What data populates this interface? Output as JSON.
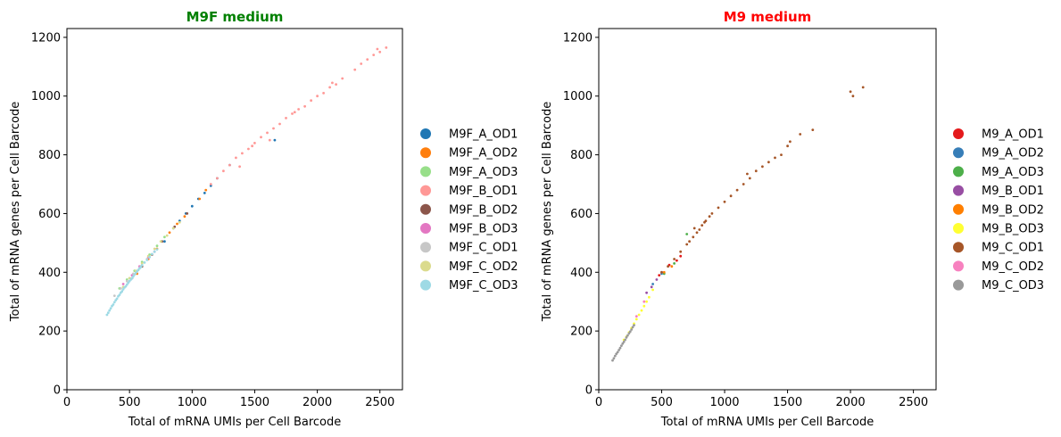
{
  "chart_data": [
    {
      "type": "scatter",
      "title": "M9F medium",
      "title_color": "#008000",
      "xlabel": "Total of mRNA UMIs per Cell Barcode",
      "ylabel": "Total of mRNA genes per Cell Barcode",
      "xlim": [
        0,
        2680
      ],
      "ylim": [
        0,
        1230
      ],
      "xticks": [
        0,
        500,
        1000,
        1500,
        2000,
        2500
      ],
      "yticks": [
        0,
        200,
        400,
        600,
        800,
        1000,
        1200
      ],
      "legend_position": "right-outside",
      "series": [
        {
          "name": "M9F_A_OD1",
          "color": "#1f77b4",
          "x": [
            780,
            850,
            900,
            950,
            1000,
            1050,
            1100,
            1150,
            1200,
            1300,
            1660
          ],
          "y": [
            505,
            550,
            575,
            600,
            625,
            650,
            670,
            695,
            720,
            765,
            850
          ]
        },
        {
          "name": "M9F_A_OD2",
          "color": "#ff7f0e",
          "x": [
            560,
            650,
            720,
            820,
            880,
            940,
            1060,
            1110
          ],
          "y": [
            395,
            445,
            480,
            535,
            565,
            590,
            650,
            680
          ]
        },
        {
          "name": "M9F_A_OD3",
          "color": "#98df8a",
          "x": [
            420,
            480,
            540,
            600,
            660,
            720,
            780
          ],
          "y": [
            345,
            375,
            405,
            435,
            460,
            490,
            520
          ]
        },
        {
          "name": "M9F_B_OD1",
          "color": "#ff9896",
          "x": [
            1150,
            1200,
            1250,
            1300,
            1350,
            1400,
            1450,
            1500,
            1550,
            1600,
            1650,
            1700,
            1750,
            1800,
            1850,
            1900,
            1950,
            2000,
            2050,
            2100,
            2150,
            2200,
            2300,
            2350,
            2400,
            2450,
            2480,
            2500,
            2550,
            1380,
            1480,
            1620,
            1820,
            2120
          ],
          "y": [
            700,
            720,
            745,
            765,
            790,
            805,
            820,
            840,
            860,
            875,
            890,
            905,
            925,
            940,
            955,
            965,
            985,
            1000,
            1010,
            1030,
            1040,
            1060,
            1090,
            1110,
            1125,
            1140,
            1160,
            1150,
            1165,
            760,
            830,
            850,
            945,
            1045
          ]
        },
        {
          "name": "M9F_B_OD2",
          "color": "#8c564b",
          "x": [
            520,
            600,
            680,
            760,
            860,
            960
          ],
          "y": [
            380,
            420,
            460,
            505,
            555,
            600
          ]
        },
        {
          "name": "M9F_B_OD3",
          "color": "#e377c2",
          "x": [
            450,
            520,
            580,
            650,
            700
          ],
          "y": [
            360,
            390,
            420,
            450,
            470
          ]
        },
        {
          "name": "M9F_C_OD1",
          "color": "#c7c7c7",
          "x": [
            380,
            430,
            480,
            530,
            590,
            640
          ],
          "y": [
            320,
            345,
            370,
            395,
            420,
            445
          ]
        },
        {
          "name": "M9F_C_OD2",
          "color": "#dbdb8d",
          "x": [
            450,
            500,
            550,
            600,
            650,
            700,
            750,
            800,
            850,
            900
          ],
          "y": [
            350,
            380,
            405,
            430,
            455,
            480,
            505,
            525,
            550,
            570
          ]
        },
        {
          "name": "M9F_C_OD3",
          "color": "#9edae5",
          "x": [
            320,
            330,
            340,
            350,
            360,
            370,
            380,
            390,
            400,
            410,
            420,
            430,
            440,
            450,
            460,
            470,
            480,
            490,
            500,
            510,
            520,
            530,
            540,
            550,
            560,
            570,
            580,
            590,
            600,
            620,
            640,
            660,
            680,
            700,
            720
          ],
          "y": [
            255,
            262,
            270,
            277,
            285,
            290,
            298,
            305,
            310,
            318,
            323,
            330,
            335,
            342,
            348,
            352,
            358,
            364,
            370,
            375,
            380,
            386,
            392,
            398,
            403,
            408,
            413,
            418,
            424,
            433,
            442,
            452,
            462,
            470,
            478
          ]
        }
      ]
    },
    {
      "type": "scatter",
      "title": "M9 medium",
      "title_color": "#ff0000",
      "xlabel": "Total of mRNA UMIs per Cell Barcode",
      "ylabel": "Total of mRNA genes per Cell Barcode",
      "xlim": [
        0,
        2680
      ],
      "ylim": [
        0,
        1230
      ],
      "xticks": [
        0,
        500,
        1000,
        1500,
        2000,
        2500
      ],
      "yticks": [
        0,
        200,
        400,
        600,
        800,
        1000,
        1200
      ],
      "legend_position": "right-outside",
      "series": [
        {
          "name": "M9_A_OD1",
          "color": "#e41a1c",
          "x": [
            480,
            560,
            620,
            650
          ],
          "y": [
            390,
            425,
            440,
            455
          ]
        },
        {
          "name": "M9_A_OD2",
          "color": "#377eb8",
          "x": [
            430,
            500
          ],
          "y": [
            360,
            395
          ]
        },
        {
          "name": "M9_A_OD3",
          "color": "#4daf4a",
          "x": [
            520,
            600,
            700
          ],
          "y": [
            395,
            430,
            530
          ]
        },
        {
          "name": "M9_B_OD1",
          "color": "#984ea3",
          "x": [
            380,
            420,
            460,
            500
          ],
          "y": [
            330,
            350,
            375,
            400
          ]
        },
        {
          "name": "M9_B_OD2",
          "color": "#ff7f00",
          "x": [
            520,
            580
          ],
          "y": [
            400,
            420
          ]
        },
        {
          "name": "M9_B_OD3",
          "color": "#ffff33",
          "x": [
            200,
            220,
            240,
            260,
            280,
            300,
            320,
            340,
            360,
            380,
            400,
            430
          ],
          "y": [
            170,
            180,
            195,
            210,
            225,
            240,
            255,
            270,
            285,
            300,
            315,
            340
          ]
        },
        {
          "name": "M9_C_OD1",
          "color": "#a65628",
          "x": [
            500,
            550,
            600,
            650,
            700,
            720,
            750,
            780,
            800,
            820,
            850,
            880,
            900,
            950,
            1000,
            1050,
            1100,
            1150,
            1200,
            1250,
            1300,
            1350,
            1400,
            1450,
            1500,
            1520,
            1600,
            1700,
            2000,
            2020,
            2100,
            760,
            840,
            1180
          ],
          "y": [
            400,
            420,
            445,
            470,
            495,
            505,
            520,
            535,
            545,
            560,
            575,
            590,
            600,
            620,
            640,
            660,
            680,
            700,
            720,
            745,
            760,
            775,
            790,
            800,
            830,
            845,
            870,
            885,
            1015,
            1000,
            1030,
            550,
            570,
            735
          ]
        },
        {
          "name": "M9_C_OD2",
          "color": "#f781bf",
          "x": [
            300,
            360
          ],
          "y": [
            250,
            300
          ]
        },
        {
          "name": "M9_C_OD3",
          "color": "#999999",
          "x": [
            110,
            120,
            130,
            140,
            150,
            160,
            170,
            180,
            190,
            200,
            210,
            220,
            230,
            240,
            250,
            260,
            270,
            280
          ],
          "y": [
            100,
            107,
            115,
            122,
            128,
            135,
            142,
            150,
            157,
            163,
            170,
            178,
            185,
            192,
            198,
            205,
            213,
            220
          ]
        }
      ]
    }
  ]
}
